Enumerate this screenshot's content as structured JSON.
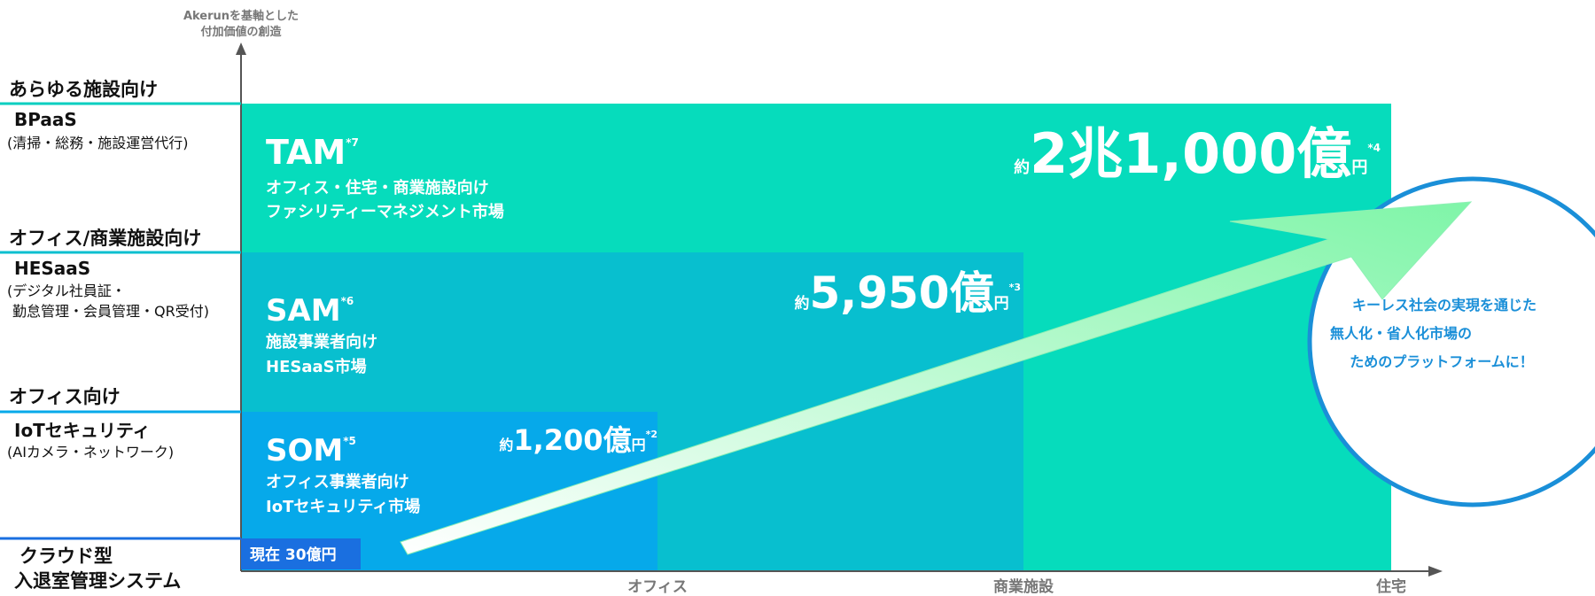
{
  "y_axis": {
    "title": [
      "Akerunを基軸とした",
      "付加価値の創造"
    ]
  },
  "x_axis": {
    "labels": [
      "オフィス",
      "商業施設",
      "住宅"
    ]
  },
  "levels": [
    {
      "scope": "あらゆる施設向け",
      "name": "BPaaS",
      "desc": [
        "(清掃・総務・施設運営代行)"
      ]
    },
    {
      "scope": "オフィス/商業施設向け",
      "name": "HESaaS",
      "desc": [
        "(デジタル社員証・",
        "勤怠管理・会員管理・QR受付)"
      ]
    },
    {
      "scope": "オフィス向け",
      "name": "IoTセキュリティ",
      "desc": [
        "(AIカメラ・ネットワーク)"
      ]
    },
    {
      "name": [
        "クラウド型",
        "入退室管理システム"
      ]
    }
  ],
  "markets": [
    {
      "label": "TAM",
      "note": "*7",
      "desc": [
        "オフィス・住宅・商業施設向け",
        "ファシリティーマネジメント市場"
      ],
      "prefix": "約",
      "size": "2兆1,000億",
      "unit": "円",
      "size_note": "*4"
    },
    {
      "label": "SAM",
      "note": "*6",
      "desc": [
        "施設事業者向け",
        "HESaaS市場"
      ],
      "prefix": "約",
      "size": "5,950億",
      "unit": "円",
      "size_note": "*3"
    },
    {
      "label": "SOM",
      "note": "*5",
      "desc": [
        "オフィス事業者向け",
        "IoTセキュリティ市場"
      ],
      "prefix": "約",
      "size": "1,200億",
      "unit": "円",
      "size_note": "*2"
    }
  ],
  "current": "現在 30億円",
  "vision": [
    "キーレス社会の実現を通じた",
    "無人化・省人化市場の",
    "ためのプラットフォームに！"
  ]
}
